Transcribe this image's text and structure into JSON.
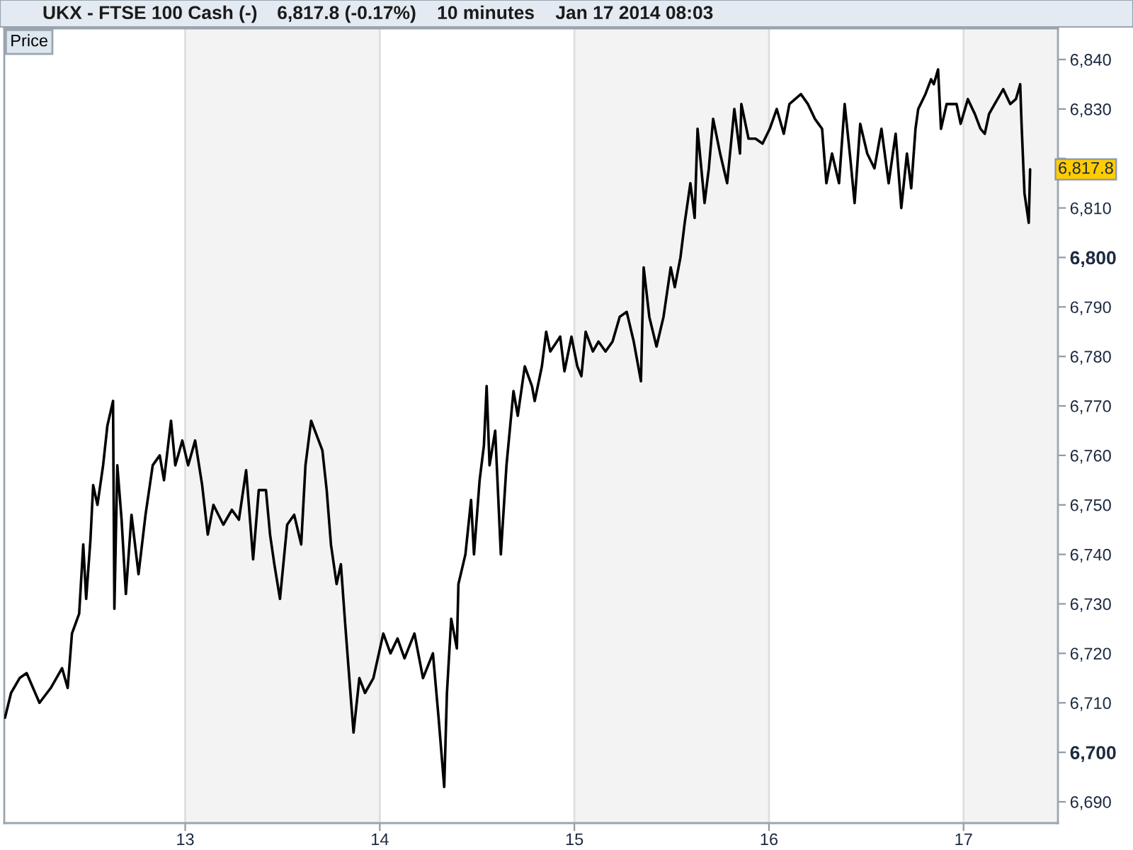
{
  "chart_data": {
    "type": "line",
    "title": "UKX - FTSE 100 Cash (-)",
    "subtitle": "6,817.8 (-0.17%)    10 minutes    Jan 17 2014 08:03",
    "series": [
      {
        "name": "Price",
        "color": "#000000",
        "x": [
          12.074,
          12.105,
          12.149,
          12.185,
          12.251,
          12.309,
          12.367,
          12.396,
          12.418,
          12.455,
          12.476,
          12.491,
          12.513,
          12.527,
          12.549,
          12.578,
          12.6,
          12.629,
          12.636,
          12.651,
          12.673,
          12.695,
          12.724,
          12.76,
          12.796,
          12.833,
          12.869,
          12.891,
          12.927,
          12.949,
          12.985,
          13.015,
          13.051,
          13.087,
          13.116,
          13.145,
          13.196,
          13.24,
          13.276,
          13.313,
          13.349,
          13.378,
          13.415,
          13.436,
          13.458,
          13.487,
          13.524,
          13.56,
          13.596,
          13.618,
          13.647,
          13.676,
          13.705,
          13.727,
          13.749,
          13.778,
          13.8,
          13.822,
          13.851,
          13.865,
          13.895,
          13.924,
          13.967,
          14.018,
          14.055,
          14.091,
          14.127,
          14.178,
          14.222,
          14.273,
          14.302,
          14.331,
          14.345,
          14.367,
          14.396,
          14.404,
          14.44,
          14.469,
          14.484,
          14.513,
          14.535,
          14.549,
          14.564,
          14.593,
          14.622,
          14.651,
          14.687,
          14.709,
          14.745,
          14.782,
          14.796,
          14.833,
          14.855,
          14.876,
          14.927,
          14.949,
          14.985,
          15.015,
          15.036,
          15.058,
          15.095,
          15.124,
          15.16,
          15.196,
          15.233,
          15.269,
          15.305,
          15.342,
          15.356,
          15.385,
          15.422,
          15.458,
          15.495,
          15.516,
          15.545,
          15.567,
          15.596,
          15.618,
          15.633,
          15.669,
          15.691,
          15.713,
          15.749,
          15.785,
          15.822,
          15.851,
          15.858,
          15.895,
          15.931,
          15.967,
          16.004,
          16.04,
          16.076,
          16.105,
          16.164,
          16.2,
          16.236,
          16.273,
          16.295,
          16.324,
          16.36,
          16.389,
          16.418,
          16.44,
          16.469,
          16.505,
          16.542,
          16.578,
          16.615,
          16.651,
          16.68,
          16.709,
          16.731,
          16.753,
          16.767,
          16.804,
          16.833,
          16.847,
          16.869,
          16.884,
          16.913,
          16.964,
          16.985,
          17.022,
          17.058,
          17.087,
          17.109,
          17.131,
          17.16,
          17.204,
          17.24,
          17.269,
          17.291,
          17.298,
          17.313,
          17.335,
          17.342
        ],
        "values": [
          6707,
          6712,
          6715,
          6716,
          6710,
          6713,
          6717,
          6713,
          6724,
          6728,
          6742,
          6731,
          6743,
          6754,
          6750,
          6758,
          6766,
          6771,
          6729,
          6758,
          6747,
          6732,
          6748,
          6736,
          6748,
          6758,
          6760,
          6755,
          6767,
          6758,
          6763,
          6758,
          6763,
          6754,
          6744,
          6750,
          6746,
          6749,
          6747,
          6757,
          6739,
          6753,
          6753,
          6744,
          6738,
          6731,
          6746,
          6748,
          6742,
          6758,
          6767,
          6764,
          6761,
          6753,
          6742,
          6734,
          6738,
          6726,
          6711,
          6704,
          6715,
          6712,
          6715,
          6724,
          6720,
          6723,
          6719,
          6724,
          6715,
          6720,
          6707,
          6693,
          6712,
          6727,
          6721,
          6734,
          6740,
          6751,
          6740,
          6755,
          6762,
          6774,
          6758,
          6765,
          6740,
          6758,
          6773,
          6768,
          6778,
          6774,
          6771,
          6778,
          6785,
          6781,
          6784,
          6777,
          6784,
          6778,
          6776,
          6785,
          6781,
          6783,
          6781,
          6783,
          6788,
          6789,
          6783,
          6775,
          6798,
          6788,
          6782,
          6788,
          6798,
          6794,
          6800,
          6807,
          6815,
          6808,
          6826,
          6811,
          6818,
          6828,
          6821,
          6815,
          6830,
          6821,
          6831,
          6824,
          6824,
          6823,
          6826,
          6830,
          6825,
          6831,
          6833,
          6831,
          6828,
          6826,
          6815,
          6821,
          6815,
          6831,
          6820,
          6811,
          6827,
          6821,
          6818,
          6826,
          6815,
          6825,
          6810,
          6821,
          6814,
          6826,
          6830,
          6833,
          6836,
          6835,
          6838,
          6826,
          6831,
          6831,
          6827,
          6832,
          6829,
          6826,
          6825,
          6829,
          6831,
          6834,
          6831,
          6832,
          6835,
          6827,
          6813,
          6807,
          6817.8
        ]
      }
    ],
    "xlim": [
      12.07,
      17.485
    ],
    "xticks": [
      13,
      14,
      15,
      16,
      17
    ],
    "ylim": [
      6685.7,
      6846.3
    ],
    "yticks": [
      {
        "value": 6690,
        "label": "6,690"
      },
      {
        "value": 6700,
        "label": "6,700"
      },
      {
        "value": 6710,
        "label": "6,710"
      },
      {
        "value": 6720,
        "label": "6,720"
      },
      {
        "value": 6730,
        "label": "6,730"
      },
      {
        "value": 6740,
        "label": "6,740"
      },
      {
        "value": 6750,
        "label": "6,750"
      },
      {
        "value": 6760,
        "label": "6,760"
      },
      {
        "value": 6770,
        "label": "6,770"
      },
      {
        "value": 6780,
        "label": "6,780"
      },
      {
        "value": 6790,
        "label": "6,790"
      },
      {
        "value": 6800,
        "label": "6,800"
      },
      {
        "value": 6810,
        "label": "6,810"
      },
      {
        "value": 6820,
        "label": null
      },
      {
        "value": 6830,
        "label": "6,830"
      },
      {
        "value": 6840,
        "label": "6,840"
      }
    ],
    "grid": "x",
    "legend": "top left",
    "line_style": "solid",
    "bands": [
      {
        "axis": "x",
        "from": 13,
        "to": 14,
        "color": "#f3f3f3"
      },
      {
        "axis": "x",
        "from": 15,
        "to": 16,
        "color": "#f3f3f3"
      },
      {
        "axis": "x",
        "from": 17,
        "to": 17.485,
        "color": "#f3f3f3"
      }
    ],
    "annotations": [
      "6,817.8"
    ]
  }
}
